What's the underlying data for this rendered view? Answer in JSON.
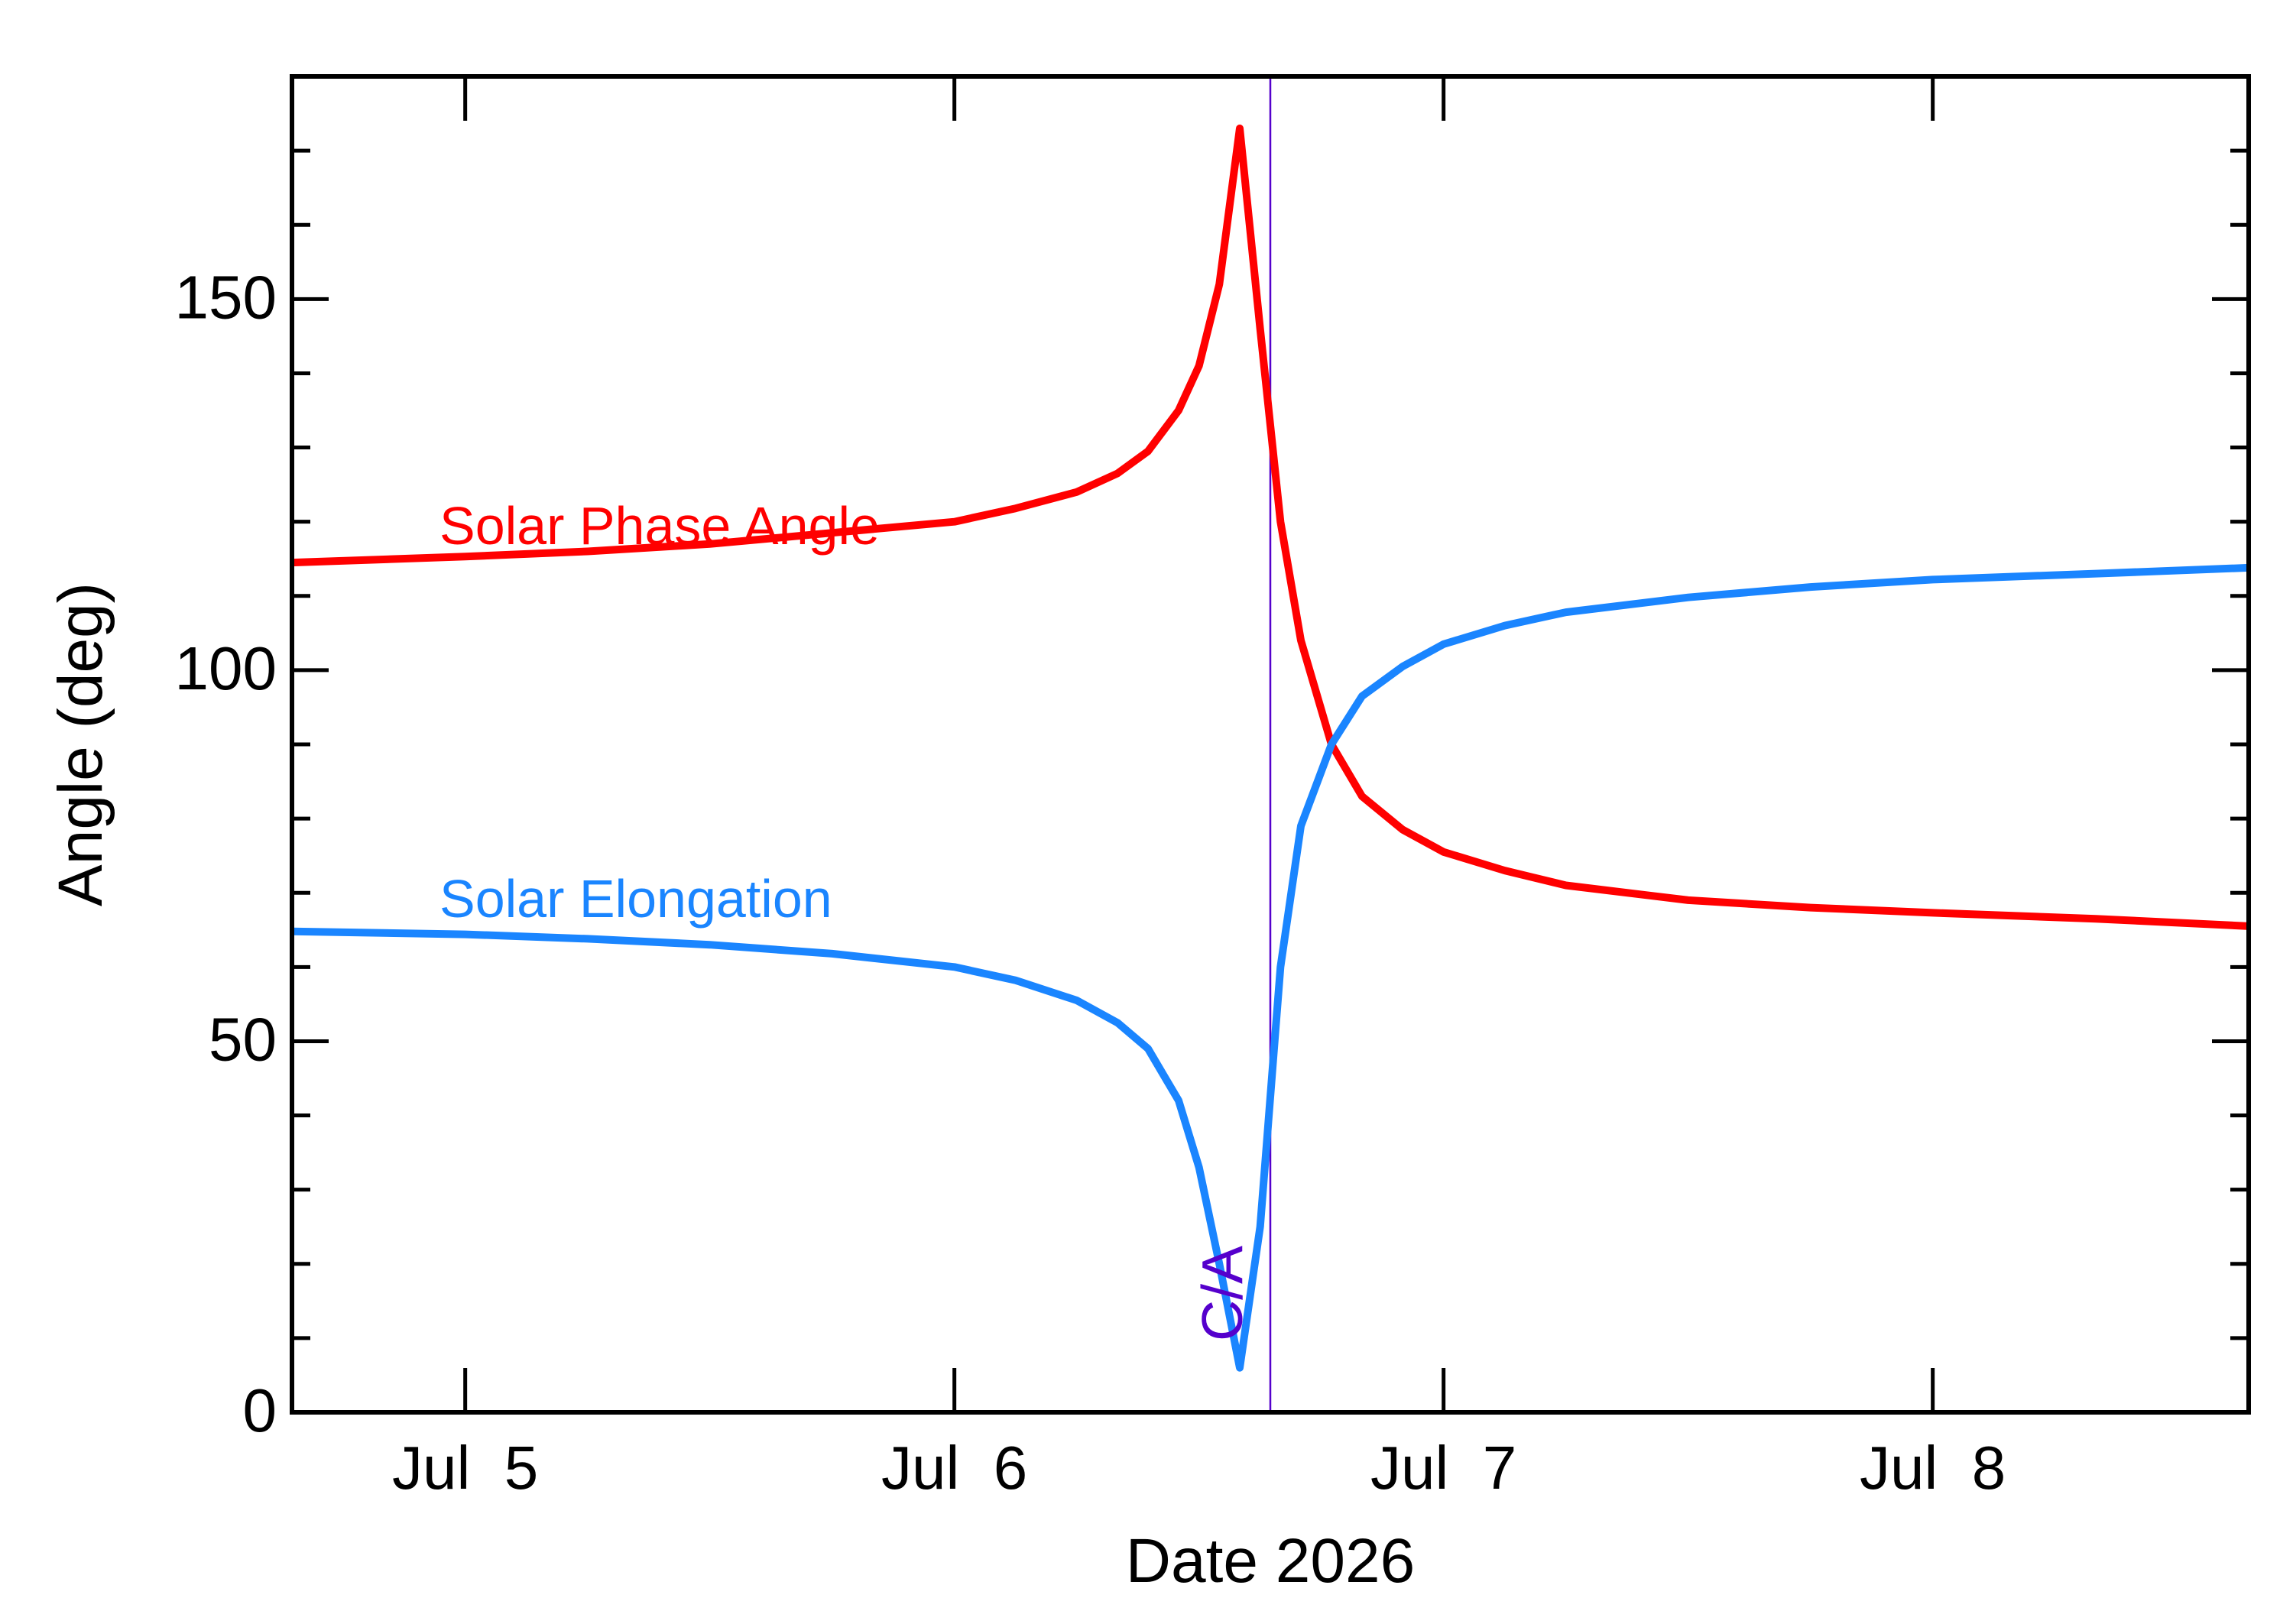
{
  "chart_data": {
    "type": "line",
    "title": "",
    "xlabel": "Date 2026",
    "ylabel": "Angle (deg)",
    "x_ticks": [
      {
        "date": "2026-07-05",
        "label": "Jul  5"
      },
      {
        "date": "2026-07-06",
        "label": "Jul  6"
      },
      {
        "date": "2026-07-07",
        "label": "Jul  7"
      },
      {
        "date": "2026-07-08",
        "label": "Jul  8"
      }
    ],
    "xlim": [
      "2026-07-04T15:30",
      "2026-07-08T15:30"
    ],
    "y_ticks": [
      0,
      50,
      100,
      150
    ],
    "ylim": [
      0,
      180
    ],
    "grid": false,
    "closest_approach": {
      "label": "C/A",
      "date": "2026-07-06T15:30",
      "color": "#5500cc"
    },
    "series": [
      {
        "name": "Solar Phase Angle",
        "color": "#ff0000",
        "points": [
          [
            "2026-07-04T15:30",
            114.5
          ],
          [
            "2026-07-05T00:00",
            115.3
          ],
          [
            "2026-07-05T06:00",
            116.0
          ],
          [
            "2026-07-05T12:00",
            117.0
          ],
          [
            "2026-07-05T18:00",
            118.5
          ],
          [
            "2026-07-06T00:00",
            120.0
          ],
          [
            "2026-07-06T03:00",
            121.8
          ],
          [
            "2026-07-06T06:00",
            124.0
          ],
          [
            "2026-07-06T08:00",
            126.5
          ],
          [
            "2026-07-06T09:30",
            129.5
          ],
          [
            "2026-07-06T11:00",
            135.0
          ],
          [
            "2026-07-06T12:00",
            141.0
          ],
          [
            "2026-07-06T13:00",
            152.0
          ],
          [
            "2026-07-06T14:00",
            173.0
          ],
          [
            "2026-07-06T15:00",
            146.0
          ],
          [
            "2026-07-06T16:00",
            120.0
          ],
          [
            "2026-07-06T17:00",
            104.0
          ],
          [
            "2026-07-06T18:30",
            90.0
          ],
          [
            "2026-07-06T20:00",
            83.0
          ],
          [
            "2026-07-06T22:00",
            78.5
          ],
          [
            "2026-07-07T00:00",
            75.5
          ],
          [
            "2026-07-07T03:00",
            73.0
          ],
          [
            "2026-07-07T06:00",
            71.0
          ],
          [
            "2026-07-07T12:00",
            69.0
          ],
          [
            "2026-07-07T18:00",
            68.0
          ],
          [
            "2026-07-08T00:00",
            67.3
          ],
          [
            "2026-07-08T08:00",
            66.5
          ],
          [
            "2026-07-08T15:30",
            65.5
          ]
        ]
      },
      {
        "name": "Solar Elongation",
        "color": "#1a85ff",
        "points": [
          [
            "2026-07-04T15:30",
            64.8
          ],
          [
            "2026-07-05T00:00",
            64.4
          ],
          [
            "2026-07-05T06:00",
            63.8
          ],
          [
            "2026-07-05T12:00",
            63.0
          ],
          [
            "2026-07-05T18:00",
            61.8
          ],
          [
            "2026-07-06T00:00",
            60.0
          ],
          [
            "2026-07-06T03:00",
            58.2
          ],
          [
            "2026-07-06T06:00",
            55.5
          ],
          [
            "2026-07-06T08:00",
            52.5
          ],
          [
            "2026-07-06T09:30",
            49.0
          ],
          [
            "2026-07-06T11:00",
            42.0
          ],
          [
            "2026-07-06T12:00",
            33.0
          ],
          [
            "2026-07-06T13:00",
            20.0
          ],
          [
            "2026-07-06T14:00",
            6.0
          ],
          [
            "2026-07-06T15:00",
            25.0
          ],
          [
            "2026-07-06T16:00",
            60.0
          ],
          [
            "2026-07-06T17:00",
            79.0
          ],
          [
            "2026-07-06T18:30",
            90.0
          ],
          [
            "2026-07-06T20:00",
            96.5
          ],
          [
            "2026-07-06T22:00",
            100.5
          ],
          [
            "2026-07-07T00:00",
            103.5
          ],
          [
            "2026-07-07T03:00",
            106.0
          ],
          [
            "2026-07-07T06:00",
            107.8
          ],
          [
            "2026-07-07T12:00",
            109.8
          ],
          [
            "2026-07-07T18:00",
            111.2
          ],
          [
            "2026-07-08T00:00",
            112.2
          ],
          [
            "2026-07-08T08:00",
            113.0
          ],
          [
            "2026-07-08T15:30",
            113.8
          ]
        ]
      }
    ]
  }
}
